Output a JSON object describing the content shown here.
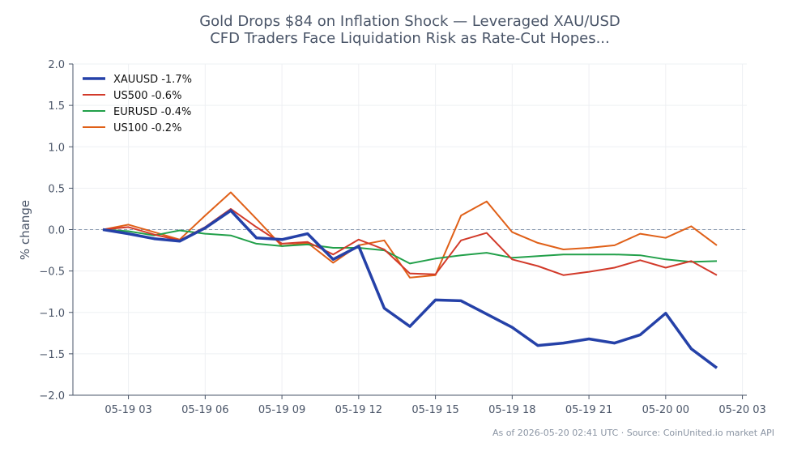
{
  "chart_data": {
    "type": "line",
    "title": "Gold Drops $84 on Inflation Shock — Leveraged XAU/USD",
    "subtitle": "CFD Traders Face Liquidation Risk as Rate-Cut Hopes...",
    "y_label": "% change",
    "source": "As of 2026-05-20 02:41 UTC · Source: CoinUnited.io market API",
    "x": [
      "05-19 02",
      "05-19 03",
      "05-19 04",
      "05-19 05",
      "05-19 06",
      "05-19 07",
      "05-19 08",
      "05-19 09",
      "05-19 10",
      "05-19 11",
      "05-19 12",
      "05-19 13",
      "05-19 14",
      "05-19 15",
      "05-19 16",
      "05-19 17",
      "05-19 18",
      "05-19 19",
      "05-19 20",
      "05-19 21",
      "05-19 22",
      "05-19 23",
      "05-20 00",
      "05-20 01",
      "05-20 02"
    ],
    "xticks": [
      "05-19 03",
      "05-19 06",
      "05-19 09",
      "05-19 12",
      "05-19 15",
      "05-19 18",
      "05-19 21",
      "05-20 00",
      "05-20 03"
    ],
    "ylim": [
      -2,
      2
    ],
    "yticks": [
      {
        "value": -2,
        "label": "−2.0"
      },
      {
        "value": -1.5,
        "label": "−1.5"
      },
      {
        "value": -1,
        "label": "−1.0"
      },
      {
        "value": -0.5,
        "label": "−0.5"
      },
      {
        "value": 0,
        "label": "0.0"
      },
      {
        "value": 0.5,
        "label": "0.5"
      },
      {
        "value": 1,
        "label": "1.0"
      },
      {
        "value": 1.5,
        "label": "1.5"
      },
      {
        "value": 2,
        "label": "2.0"
      }
    ],
    "grid": true,
    "legend": "upper left",
    "series": [
      {
        "name": "XAUUSD -1.7%",
        "color": "#2541a8",
        "values": [
          0,
          -0.05,
          -0.11,
          -0.14,
          0.02,
          0.23,
          -0.1,
          -0.12,
          -0.05,
          -0.36,
          -0.2,
          -0.95,
          -1.17,
          -0.85,
          -0.86,
          -1.02,
          -1.18,
          -1.4,
          -1.37,
          -1.32,
          -1.37,
          -1.27,
          -1.01,
          -1.44,
          -1.67
        ]
      },
      {
        "name": "US500 -0.6%",
        "color": "#d23a2a",
        "values": [
          0,
          0.03,
          -0.06,
          -0.13,
          0.03,
          0.25,
          0.03,
          -0.17,
          -0.15,
          -0.3,
          -0.12,
          -0.24,
          -0.53,
          -0.54,
          -0.13,
          -0.04,
          -0.36,
          -0.44,
          -0.55,
          -0.51,
          -0.46,
          -0.37,
          -0.46,
          -0.38,
          -0.55
        ]
      },
      {
        "name": "EURUSD -0.4%",
        "color": "#22a04a",
        "values": [
          0,
          -0.02,
          -0.07,
          -0.01,
          -0.05,
          -0.07,
          -0.17,
          -0.2,
          -0.18,
          -0.22,
          -0.22,
          -0.25,
          -0.41,
          -0.35,
          -0.31,
          -0.28,
          -0.34,
          -0.32,
          -0.3,
          -0.3,
          -0.3,
          -0.31,
          -0.36,
          -0.39,
          -0.38
        ]
      },
      {
        "name": "US100 -0.2%",
        "color": "#e06018",
        "values": [
          0,
          0.06,
          -0.03,
          -0.12,
          0.17,
          0.45,
          0.13,
          -0.2,
          -0.16,
          -0.4,
          -0.19,
          -0.13,
          -0.58,
          -0.55,
          0.17,
          0.34,
          -0.03,
          -0.16,
          -0.24,
          -0.22,
          -0.19,
          -0.05,
          -0.1,
          0.04,
          -0.19
        ]
      }
    ]
  }
}
